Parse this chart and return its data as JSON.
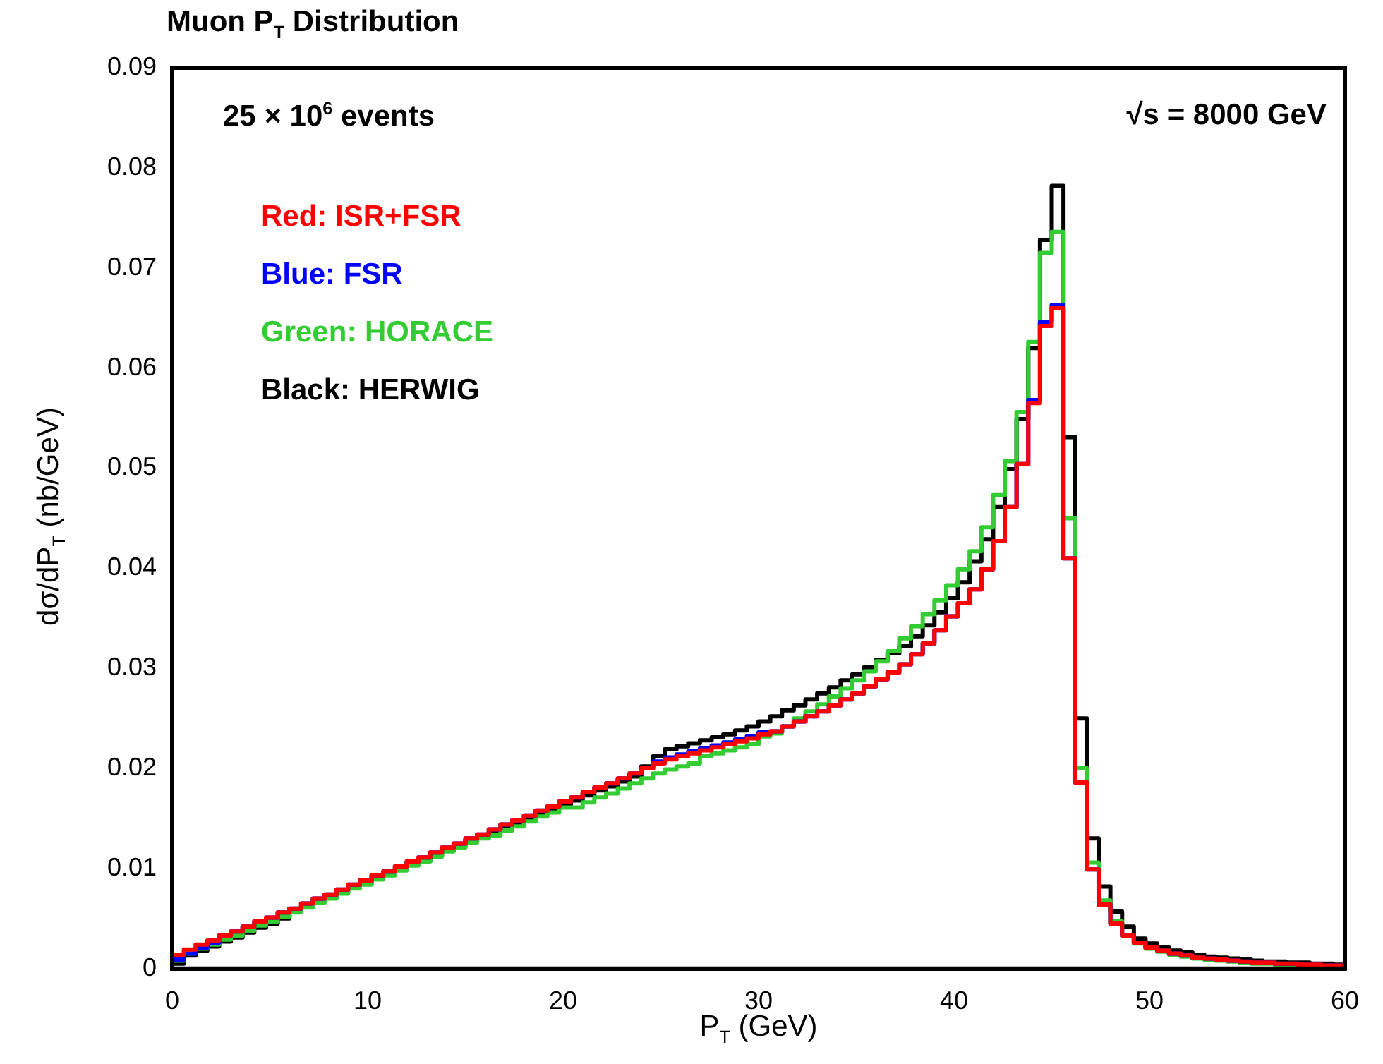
{
  "chart_data": {
    "type": "histogram",
    "title": "Muon P$_{T}$ Distribution",
    "xlabel": "P$_{T}$ (GeV)",
    "ylabel": "dσ/dP$_{T}$ (nb/GeV)",
    "annotations": [
      "25 × 10$^{6}$  events",
      "√s =  8000 GeV"
    ],
    "bins": [
      0,
      0.6,
      1.2,
      1.8,
      2.4,
      3,
      3.6,
      4.2,
      4.8,
      5.4,
      6,
      6.6,
      7.2,
      7.8,
      8.4,
      9,
      9.6,
      10.2,
      10.8,
      11.4,
      12,
      12.6,
      13.2,
      13.8,
      14.4,
      15,
      15.6,
      16.2,
      16.8,
      17.4,
      18,
      18.6,
      19.2,
      19.8,
      20.4,
      21,
      21.6,
      22.2,
      22.8,
      23.4,
      24,
      24.6,
      25.2,
      25.8,
      26.4,
      27,
      27.6,
      28.2,
      28.8,
      29.4,
      30,
      30.6,
      31.2,
      31.8,
      32.4,
      33,
      33.6,
      34.2,
      34.8,
      35.4,
      36,
      36.6,
      37.2,
      37.8,
      38.4,
      39,
      39.6,
      40.2,
      40.8,
      41.4,
      42,
      42.6,
      43.2,
      43.8,
      44.4,
      45,
      45.6,
      46.2,
      46.8,
      47.4,
      48,
      48.6,
      49.2,
      49.8,
      50.4,
      51,
      51.6,
      52.2,
      52.8,
      53.4,
      54,
      54.6,
      55.2,
      55.8,
      56.4,
      57,
      57.6,
      58.2,
      58.8,
      59.4,
      60
    ],
    "series": [
      {
        "name": "Red:  ISR+FSR",
        "color": "#ff0000",
        "values": [
          0.0014,
          0.0019,
          0.0024,
          0.0028,
          0.0033,
          0.0037,
          0.0042,
          0.0047,
          0.0051,
          0.0056,
          0.006,
          0.0065,
          0.007,
          0.0074,
          0.0079,
          0.0084,
          0.0088,
          0.0093,
          0.0097,
          0.0102,
          0.0107,
          0.0111,
          0.0116,
          0.0121,
          0.0125,
          0.013,
          0.0134,
          0.0139,
          0.0144,
          0.0148,
          0.0153,
          0.0158,
          0.0162,
          0.0167,
          0.0171,
          0.0176,
          0.0181,
          0.0185,
          0.019,
          0.0195,
          0.02,
          0.0205,
          0.0209,
          0.0212,
          0.0215,
          0.0218,
          0.0221,
          0.0224,
          0.0227,
          0.023,
          0.0234,
          0.0237,
          0.0242,
          0.0247,
          0.0252,
          0.0257,
          0.0263,
          0.0269,
          0.0275,
          0.0282,
          0.0289,
          0.0296,
          0.0304,
          0.0314,
          0.0325,
          0.0338,
          0.0352,
          0.0365,
          0.0379,
          0.0399,
          0.0427,
          0.0461,
          0.0504,
          0.0565,
          0.0642,
          0.066,
          0.041,
          0.0186,
          0.0099,
          0.0064,
          0.0045,
          0.0033,
          0.0026,
          0.0021,
          0.0018,
          0.0015,
          0.0013,
          0.0011,
          0.001,
          0.0009,
          0.0008,
          0.0007,
          0.0006,
          0.0006,
          0.0005,
          0.0005,
          0.0004,
          0.0004,
          0.0003,
          0.0003
        ]
      },
      {
        "name": "Blue:  FSR",
        "color": "#0000ff",
        "values": [
          0.0009,
          0.0015,
          0.0021,
          0.0026,
          0.0033,
          0.0037,
          0.0042,
          0.0047,
          0.0051,
          0.0056,
          0.006,
          0.0065,
          0.007,
          0.0074,
          0.0079,
          0.0084,
          0.0088,
          0.0093,
          0.0097,
          0.0102,
          0.0107,
          0.0111,
          0.0116,
          0.0121,
          0.0125,
          0.013,
          0.0134,
          0.0139,
          0.0144,
          0.0148,
          0.0153,
          0.0158,
          0.0162,
          0.0167,
          0.0171,
          0.0176,
          0.0181,
          0.0185,
          0.019,
          0.0195,
          0.02,
          0.0207,
          0.0211,
          0.0214,
          0.0217,
          0.022,
          0.0223,
          0.0226,
          0.0229,
          0.0232,
          0.0236,
          0.0237,
          0.0242,
          0.0247,
          0.0252,
          0.0257,
          0.0263,
          0.0269,
          0.0275,
          0.0282,
          0.0289,
          0.0296,
          0.0304,
          0.0314,
          0.0325,
          0.0338,
          0.0352,
          0.0365,
          0.0379,
          0.0399,
          0.0427,
          0.0461,
          0.0504,
          0.0568,
          0.0646,
          0.0663,
          0.041,
          0.0186,
          0.0099,
          0.0064,
          0.0045,
          0.0033,
          0.0026,
          0.0021,
          0.0018,
          0.0015,
          0.0013,
          0.0011,
          0.001,
          0.0009,
          0.0008,
          0.0007,
          0.0006,
          0.0006,
          0.0005,
          0.0005,
          0.0004,
          0.0004,
          0.0003,
          0.0003
        ]
      },
      {
        "name": "Green: HORACE",
        "color": "#33cc33",
        "values": [
          0.0008,
          0.0015,
          0.002,
          0.0024,
          0.0029,
          0.0033,
          0.0038,
          0.0043,
          0.0047,
          0.0052,
          0.0056,
          0.0061,
          0.0066,
          0.007,
          0.0075,
          0.008,
          0.0084,
          0.0089,
          0.0093,
          0.0098,
          0.0103,
          0.0107,
          0.0112,
          0.0117,
          0.0121,
          0.0126,
          0.013,
          0.0133,
          0.0138,
          0.0142,
          0.0147,
          0.0152,
          0.0156,
          0.0161,
          0.0161,
          0.0166,
          0.0171,
          0.0175,
          0.018,
          0.0185,
          0.019,
          0.0195,
          0.0199,
          0.0202,
          0.0205,
          0.0212,
          0.0215,
          0.0218,
          0.0221,
          0.0224,
          0.0232,
          0.0235,
          0.0242,
          0.025,
          0.0257,
          0.0264,
          0.0272,
          0.028,
          0.0288,
          0.0297,
          0.0307,
          0.0317,
          0.033,
          0.0342,
          0.0354,
          0.0368,
          0.0383,
          0.0399,
          0.0417,
          0.0441,
          0.0473,
          0.0507,
          0.0556,
          0.0626,
          0.0715,
          0.0736,
          0.045,
          0.02,
          0.0106,
          0.0068,
          0.0047,
          0.0033,
          0.0025,
          0.002,
          0.0017,
          0.0014,
          0.0012,
          0.001,
          0.0009,
          0.0008,
          0.0007,
          0.0006,
          0.0005,
          0.0005,
          0.0004,
          0.0004,
          0.0003,
          0.0003,
          0.0002,
          0.0002
        ]
      },
      {
        "name": "Black: HERWIG",
        "color": "#000000",
        "values": [
          0.0005,
          0.0013,
          0.0018,
          0.0022,
          0.0027,
          0.0031,
          0.0036,
          0.0041,
          0.0045,
          0.005,
          0.0057,
          0.0062,
          0.0067,
          0.0071,
          0.0076,
          0.0081,
          0.0085,
          0.009,
          0.0094,
          0.0099,
          0.0104,
          0.0108,
          0.0113,
          0.0118,
          0.0122,
          0.0127,
          0.0131,
          0.0136,
          0.0141,
          0.0145,
          0.015,
          0.0155,
          0.0159,
          0.0164,
          0.0168,
          0.0173,
          0.0178,
          0.0182,
          0.0187,
          0.0192,
          0.0202,
          0.0212,
          0.0219,
          0.0222,
          0.0225,
          0.0228,
          0.0231,
          0.0234,
          0.0238,
          0.0242,
          0.0247,
          0.0252,
          0.0258,
          0.0263,
          0.0269,
          0.0275,
          0.0281,
          0.0288,
          0.0294,
          0.0301,
          0.0308,
          0.0315,
          0.0322,
          0.0332,
          0.0343,
          0.0356,
          0.037,
          0.0386,
          0.0407,
          0.0429,
          0.0461,
          0.0499,
          0.0549,
          0.062,
          0.0728,
          0.0782,
          0.0531,
          0.025,
          0.013,
          0.0082,
          0.0057,
          0.0042,
          0.003,
          0.0025,
          0.0021,
          0.0018,
          0.0016,
          0.0014,
          0.0012,
          0.0011,
          0.001,
          0.0009,
          0.0008,
          0.0007,
          0.0007,
          0.0006,
          0.0006,
          0.0005,
          0.0005,
          0.0004
        ]
      }
    ],
    "xlim": [
      0,
      60
    ],
    "xticks": [
      0,
      10,
      20,
      30,
      40,
      50,
      60
    ],
    "ylim": [
      0,
      0.09
    ],
    "yticks": [
      0,
      0.01,
      0.02,
      0.03,
      0.04,
      0.05,
      0.06,
      0.07,
      0.08,
      0.09
    ],
    "grid": false,
    "legend": "top left"
  }
}
